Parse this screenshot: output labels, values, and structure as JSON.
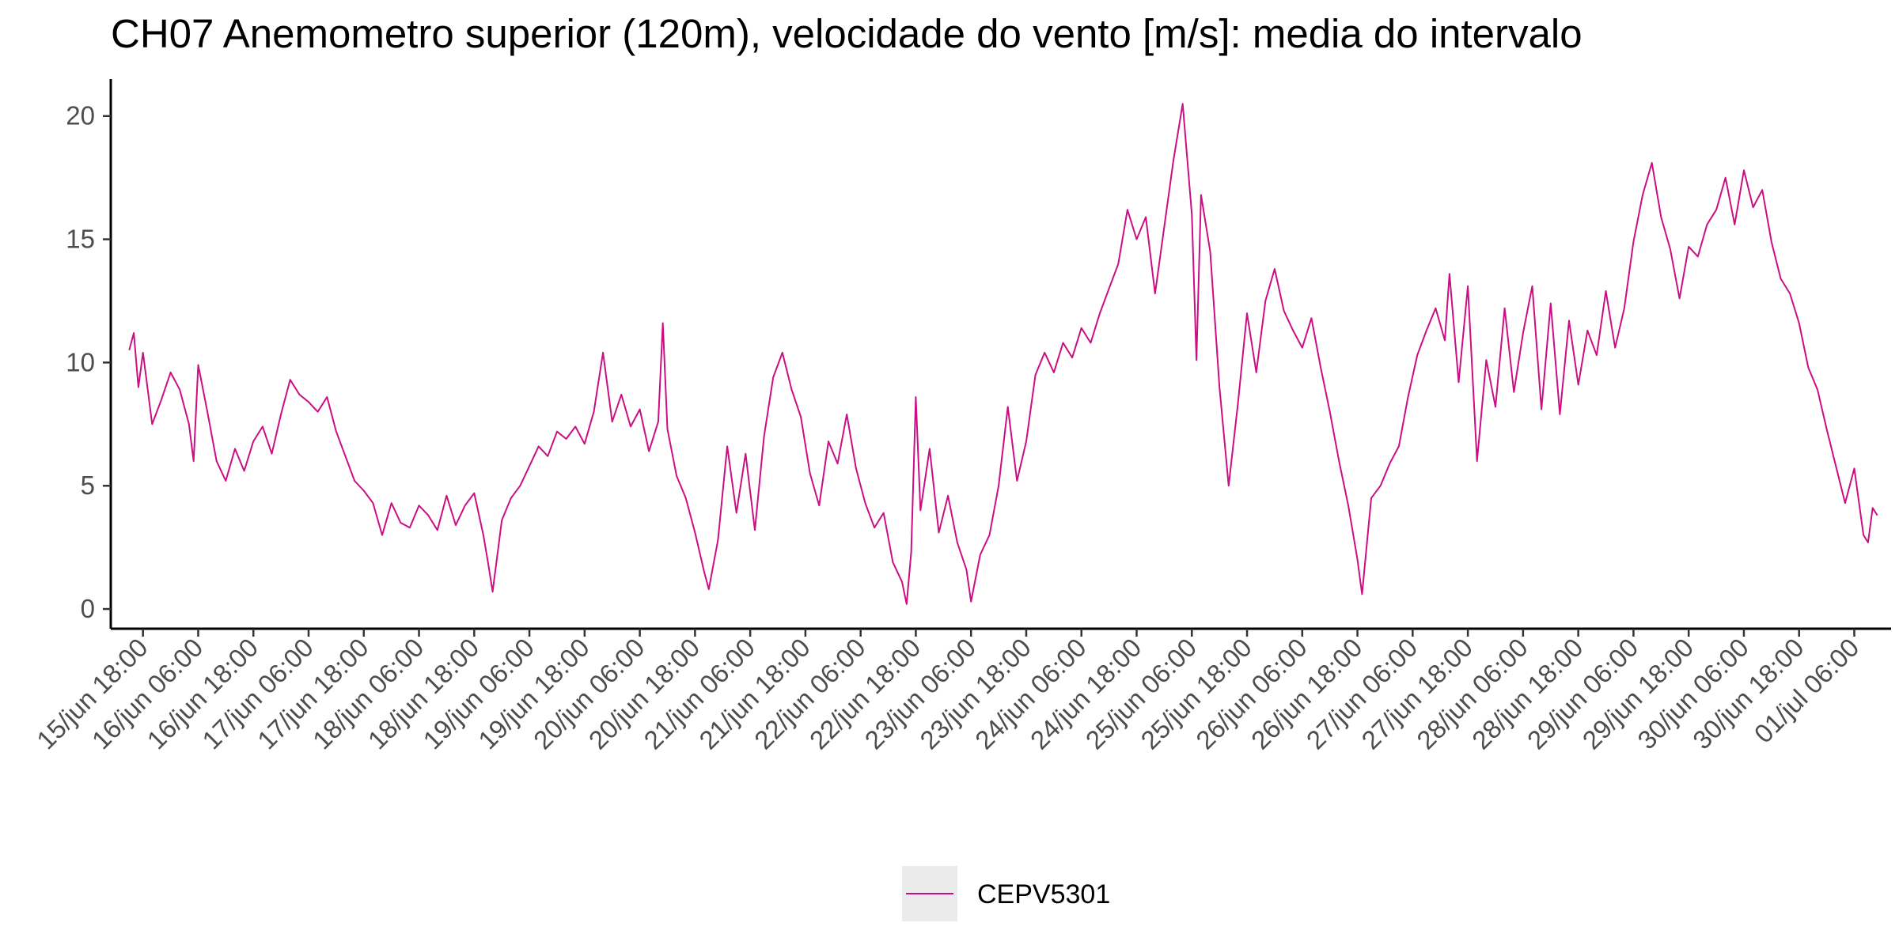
{
  "chart_data": {
    "type": "line",
    "title": "CH07 Anemometro superior (120m), velocidade do vento [m/s]: media do intervalo",
    "xlabel": "",
    "ylabel": "",
    "ylim": [
      -0.8,
      21.5
    ],
    "xlim": [
      "2022-06-15T11:00",
      "2022-07-01T14:00"
    ],
    "y_ticks": [
      0,
      5,
      10,
      15,
      20
    ],
    "x_tick_dates": [
      "2022-06-15T18:00",
      "2022-06-16T06:00",
      "2022-06-16T18:00",
      "2022-06-17T06:00",
      "2022-06-17T18:00",
      "2022-06-18T06:00",
      "2022-06-18T18:00",
      "2022-06-19T06:00",
      "2022-06-19T18:00",
      "2022-06-20T06:00",
      "2022-06-20T18:00",
      "2022-06-21T06:00",
      "2022-06-21T18:00",
      "2022-06-22T06:00",
      "2022-06-22T18:00",
      "2022-06-23T06:00",
      "2022-06-23T18:00",
      "2022-06-24T06:00",
      "2022-06-24T18:00",
      "2022-06-25T06:00",
      "2022-06-25T18:00",
      "2022-06-26T06:00",
      "2022-06-26T18:00",
      "2022-06-27T06:00",
      "2022-06-27T18:00",
      "2022-06-28T06:00",
      "2022-06-28T18:00",
      "2022-06-29T06:00",
      "2022-06-29T18:00",
      "2022-06-30T06:00",
      "2022-06-30T18:00",
      "2022-07-01T06:00"
    ],
    "x_tick_labels": [
      "15/jun 18:00",
      "16/jun 06:00",
      "16/jun 18:00",
      "17/jun 06:00",
      "17/jun 18:00",
      "18/jun 06:00",
      "18/jun 18:00",
      "19/jun 06:00",
      "19/jun 18:00",
      "20/jun 06:00",
      "20/jun 18:00",
      "21/jun 06:00",
      "21/jun 18:00",
      "22/jun 06:00",
      "22/jun 18:00",
      "23/jun 06:00",
      "23/jun 18:00",
      "24/jun 06:00",
      "24/jun 18:00",
      "25/jun 06:00",
      "25/jun 18:00",
      "26/jun 06:00",
      "26/jun 18:00",
      "27/jun 06:00",
      "27/jun 18:00",
      "28/jun 06:00",
      "28/jun 18:00",
      "29/jun 06:00",
      "29/jun 18:00",
      "30/jun 06:00",
      "30/jun 18:00",
      "01/jul 06:00"
    ],
    "grid": false,
    "legend_position": "bottom",
    "series": [
      {
        "name": "CEPV5301",
        "color": "#cc0e84",
        "points": [
          [
            "2022-06-15T15:00",
            10.5
          ],
          [
            "2022-06-15T16:00",
            11.2
          ],
          [
            "2022-06-15T17:00",
            9.0
          ],
          [
            "2022-06-15T18:00",
            10.4
          ],
          [
            "2022-06-15T20:00",
            7.5
          ],
          [
            "2022-06-15T22:00",
            8.5
          ],
          [
            "2022-06-16T00:00",
            9.6
          ],
          [
            "2022-06-16T02:00",
            8.9
          ],
          [
            "2022-06-16T04:00",
            7.5
          ],
          [
            "2022-06-16T05:00",
            6.0
          ],
          [
            "2022-06-16T06:00",
            9.9
          ],
          [
            "2022-06-16T08:00",
            8.0
          ],
          [
            "2022-06-16T10:00",
            6.0
          ],
          [
            "2022-06-16T12:00",
            5.2
          ],
          [
            "2022-06-16T14:00",
            6.5
          ],
          [
            "2022-06-16T16:00",
            5.6
          ],
          [
            "2022-06-16T18:00",
            6.8
          ],
          [
            "2022-06-16T20:00",
            7.4
          ],
          [
            "2022-06-16T22:00",
            6.3
          ],
          [
            "2022-06-17T00:00",
            7.9
          ],
          [
            "2022-06-17T02:00",
            9.3
          ],
          [
            "2022-06-17T04:00",
            8.7
          ],
          [
            "2022-06-17T06:00",
            8.4
          ],
          [
            "2022-06-17T08:00",
            8.0
          ],
          [
            "2022-06-17T10:00",
            8.6
          ],
          [
            "2022-06-17T12:00",
            7.2
          ],
          [
            "2022-06-17T14:00",
            6.2
          ],
          [
            "2022-06-17T16:00",
            5.2
          ],
          [
            "2022-06-17T18:00",
            4.8
          ],
          [
            "2022-06-17T20:00",
            4.3
          ],
          [
            "2022-06-17T22:00",
            3.0
          ],
          [
            "2022-06-18T00:00",
            4.3
          ],
          [
            "2022-06-18T02:00",
            3.5
          ],
          [
            "2022-06-18T04:00",
            3.3
          ],
          [
            "2022-06-18T06:00",
            4.2
          ],
          [
            "2022-06-18T08:00",
            3.8
          ],
          [
            "2022-06-18T10:00",
            3.2
          ],
          [
            "2022-06-18T12:00",
            4.6
          ],
          [
            "2022-06-18T14:00",
            3.4
          ],
          [
            "2022-06-18T16:00",
            4.2
          ],
          [
            "2022-06-18T18:00",
            4.7
          ],
          [
            "2022-06-18T20:00",
            3.0
          ],
          [
            "2022-06-18T21:00",
            1.9
          ],
          [
            "2022-06-18T22:00",
            0.7
          ],
          [
            "2022-06-19T00:00",
            3.6
          ],
          [
            "2022-06-19T02:00",
            4.5
          ],
          [
            "2022-06-19T04:00",
            5.0
          ],
          [
            "2022-06-19T06:00",
            5.8
          ],
          [
            "2022-06-19T08:00",
            6.6
          ],
          [
            "2022-06-19T10:00",
            6.2
          ],
          [
            "2022-06-19T12:00",
            7.2
          ],
          [
            "2022-06-19T14:00",
            6.9
          ],
          [
            "2022-06-19T16:00",
            7.4
          ],
          [
            "2022-06-19T18:00",
            6.7
          ],
          [
            "2022-06-19T20:00",
            8.0
          ],
          [
            "2022-06-19T22:00",
            10.4
          ],
          [
            "2022-06-20T00:00",
            7.6
          ],
          [
            "2022-06-20T02:00",
            8.7
          ],
          [
            "2022-06-20T04:00",
            7.4
          ],
          [
            "2022-06-20T06:00",
            8.1
          ],
          [
            "2022-06-20T08:00",
            6.4
          ],
          [
            "2022-06-20T10:00",
            7.6
          ],
          [
            "2022-06-20T11:00",
            11.6
          ],
          [
            "2022-06-20T12:00",
            7.3
          ],
          [
            "2022-06-20T14:00",
            5.4
          ],
          [
            "2022-06-20T16:00",
            4.5
          ],
          [
            "2022-06-20T18:00",
            3.1
          ],
          [
            "2022-06-20T20:00",
            1.5
          ],
          [
            "2022-06-20T21:00",
            0.8
          ],
          [
            "2022-06-20T23:00",
            2.8
          ],
          [
            "2022-06-21T01:00",
            6.6
          ],
          [
            "2022-06-21T03:00",
            3.9
          ],
          [
            "2022-06-21T05:00",
            6.3
          ],
          [
            "2022-06-21T07:00",
            3.2
          ],
          [
            "2022-06-21T09:00",
            7.0
          ],
          [
            "2022-06-21T11:00",
            9.4
          ],
          [
            "2022-06-21T13:00",
            10.4
          ],
          [
            "2022-06-21T15:00",
            8.9
          ],
          [
            "2022-06-21T17:00",
            7.8
          ],
          [
            "2022-06-21T19:00",
            5.5
          ],
          [
            "2022-06-21T21:00",
            4.2
          ],
          [
            "2022-06-21T23:00",
            6.8
          ],
          [
            "2022-06-22T01:00",
            5.9
          ],
          [
            "2022-06-22T03:00",
            7.9
          ],
          [
            "2022-06-22T05:00",
            5.7
          ],
          [
            "2022-06-22T07:00",
            4.3
          ],
          [
            "2022-06-22T09:00",
            3.3
          ],
          [
            "2022-06-22T11:00",
            3.9
          ],
          [
            "2022-06-22T13:00",
            1.9
          ],
          [
            "2022-06-22T15:00",
            1.1
          ],
          [
            "2022-06-22T16:00",
            0.2
          ],
          [
            "2022-06-22T17:00",
            2.3
          ],
          [
            "2022-06-22T18:00",
            8.6
          ],
          [
            "2022-06-22T19:00",
            4.0
          ],
          [
            "2022-06-22T21:00",
            6.5
          ],
          [
            "2022-06-22T23:00",
            3.1
          ],
          [
            "2022-06-23T01:00",
            4.6
          ],
          [
            "2022-06-23T03:00",
            2.7
          ],
          [
            "2022-06-23T05:00",
            1.6
          ],
          [
            "2022-06-23T06:00",
            0.3
          ],
          [
            "2022-06-23T08:00",
            2.2
          ],
          [
            "2022-06-23T10:00",
            3.0
          ],
          [
            "2022-06-23T12:00",
            5.0
          ],
          [
            "2022-06-23T14:00",
            8.2
          ],
          [
            "2022-06-23T16:00",
            5.2
          ],
          [
            "2022-06-23T18:00",
            6.8
          ],
          [
            "2022-06-23T20:00",
            9.5
          ],
          [
            "2022-06-23T22:00",
            10.4
          ],
          [
            "2022-06-24T00:00",
            9.6
          ],
          [
            "2022-06-24T02:00",
            10.8
          ],
          [
            "2022-06-24T04:00",
            10.2
          ],
          [
            "2022-06-24T06:00",
            11.4
          ],
          [
            "2022-06-24T08:00",
            10.8
          ],
          [
            "2022-06-24T10:00",
            12.0
          ],
          [
            "2022-06-24T12:00",
            13.0
          ],
          [
            "2022-06-24T14:00",
            14.0
          ],
          [
            "2022-06-24T16:00",
            16.2
          ],
          [
            "2022-06-24T18:00",
            15.0
          ],
          [
            "2022-06-24T20:00",
            15.9
          ],
          [
            "2022-06-24T22:00",
            12.8
          ],
          [
            "2022-06-25T00:00",
            15.5
          ],
          [
            "2022-06-25T02:00",
            18.2
          ],
          [
            "2022-06-25T04:00",
            20.5
          ],
          [
            "2022-06-25T06:00",
            16.0
          ],
          [
            "2022-06-25T07:00",
            10.1
          ],
          [
            "2022-06-25T08:00",
            16.8
          ],
          [
            "2022-06-25T10:00",
            14.5
          ],
          [
            "2022-06-25T12:00",
            9.0
          ],
          [
            "2022-06-25T14:00",
            5.0
          ],
          [
            "2022-06-25T16:00",
            8.3
          ],
          [
            "2022-06-25T18:00",
            12.0
          ],
          [
            "2022-06-25T20:00",
            9.6
          ],
          [
            "2022-06-25T22:00",
            12.5
          ],
          [
            "2022-06-26T00:00",
            13.8
          ],
          [
            "2022-06-26T02:00",
            12.1
          ],
          [
            "2022-06-26T04:00",
            11.3
          ],
          [
            "2022-06-26T06:00",
            10.6
          ],
          [
            "2022-06-26T08:00",
            11.8
          ],
          [
            "2022-06-26T10:00",
            9.8
          ],
          [
            "2022-06-26T12:00",
            8.0
          ],
          [
            "2022-06-26T14:00",
            6.0
          ],
          [
            "2022-06-26T16:00",
            4.2
          ],
          [
            "2022-06-26T18:00",
            2.0
          ],
          [
            "2022-06-26T19:00",
            0.6
          ],
          [
            "2022-06-26T21:00",
            4.5
          ],
          [
            "2022-06-26T23:00",
            5.0
          ],
          [
            "2022-06-27T01:00",
            5.9
          ],
          [
            "2022-06-27T03:00",
            6.6
          ],
          [
            "2022-06-27T05:00",
            8.6
          ],
          [
            "2022-06-27T07:00",
            10.3
          ],
          [
            "2022-06-27T09:00",
            11.3
          ],
          [
            "2022-06-27T11:00",
            12.2
          ],
          [
            "2022-06-27T13:00",
            10.9
          ],
          [
            "2022-06-27T14:00",
            13.6
          ],
          [
            "2022-06-27T16:00",
            9.2
          ],
          [
            "2022-06-27T18:00",
            13.1
          ],
          [
            "2022-06-27T20:00",
            6.0
          ],
          [
            "2022-06-27T22:00",
            10.1
          ],
          [
            "2022-06-28T00:00",
            8.2
          ],
          [
            "2022-06-28T02:00",
            12.2
          ],
          [
            "2022-06-28T04:00",
            8.8
          ],
          [
            "2022-06-28T06:00",
            11.2
          ],
          [
            "2022-06-28T08:00",
            13.1
          ],
          [
            "2022-06-28T10:00",
            8.1
          ],
          [
            "2022-06-28T12:00",
            12.4
          ],
          [
            "2022-06-28T14:00",
            7.9
          ],
          [
            "2022-06-28T16:00",
            11.7
          ],
          [
            "2022-06-28T18:00",
            9.1
          ],
          [
            "2022-06-28T20:00",
            11.3
          ],
          [
            "2022-06-28T22:00",
            10.3
          ],
          [
            "2022-06-29T00:00",
            12.9
          ],
          [
            "2022-06-29T02:00",
            10.6
          ],
          [
            "2022-06-29T04:00",
            12.2
          ],
          [
            "2022-06-29T06:00",
            14.9
          ],
          [
            "2022-06-29T08:00",
            16.8
          ],
          [
            "2022-06-29T10:00",
            18.1
          ],
          [
            "2022-06-29T12:00",
            15.9
          ],
          [
            "2022-06-29T14:00",
            14.6
          ],
          [
            "2022-06-29T16:00",
            12.6
          ],
          [
            "2022-06-29T18:00",
            14.7
          ],
          [
            "2022-06-29T20:00",
            14.3
          ],
          [
            "2022-06-29T22:00",
            15.6
          ],
          [
            "2022-06-30T00:00",
            16.2
          ],
          [
            "2022-06-30T02:00",
            17.5
          ],
          [
            "2022-06-30T04:00",
            15.6
          ],
          [
            "2022-06-30T06:00",
            17.8
          ],
          [
            "2022-06-30T08:00",
            16.3
          ],
          [
            "2022-06-30T10:00",
            17.0
          ],
          [
            "2022-06-30T12:00",
            14.9
          ],
          [
            "2022-06-30T14:00",
            13.4
          ],
          [
            "2022-06-30T16:00",
            12.8
          ],
          [
            "2022-06-30T18:00",
            11.6
          ],
          [
            "2022-06-30T20:00",
            9.8
          ],
          [
            "2022-06-30T22:00",
            8.9
          ],
          [
            "2022-07-01T00:00",
            7.3
          ],
          [
            "2022-07-01T02:00",
            5.8
          ],
          [
            "2022-07-01T04:00",
            4.3
          ],
          [
            "2022-07-01T06:00",
            5.7
          ],
          [
            "2022-07-01T08:00",
            3.0
          ],
          [
            "2022-07-01T09:00",
            2.7
          ],
          [
            "2022-07-01T10:00",
            4.1
          ],
          [
            "2022-07-01T11:00",
            3.8
          ]
        ]
      }
    ]
  }
}
